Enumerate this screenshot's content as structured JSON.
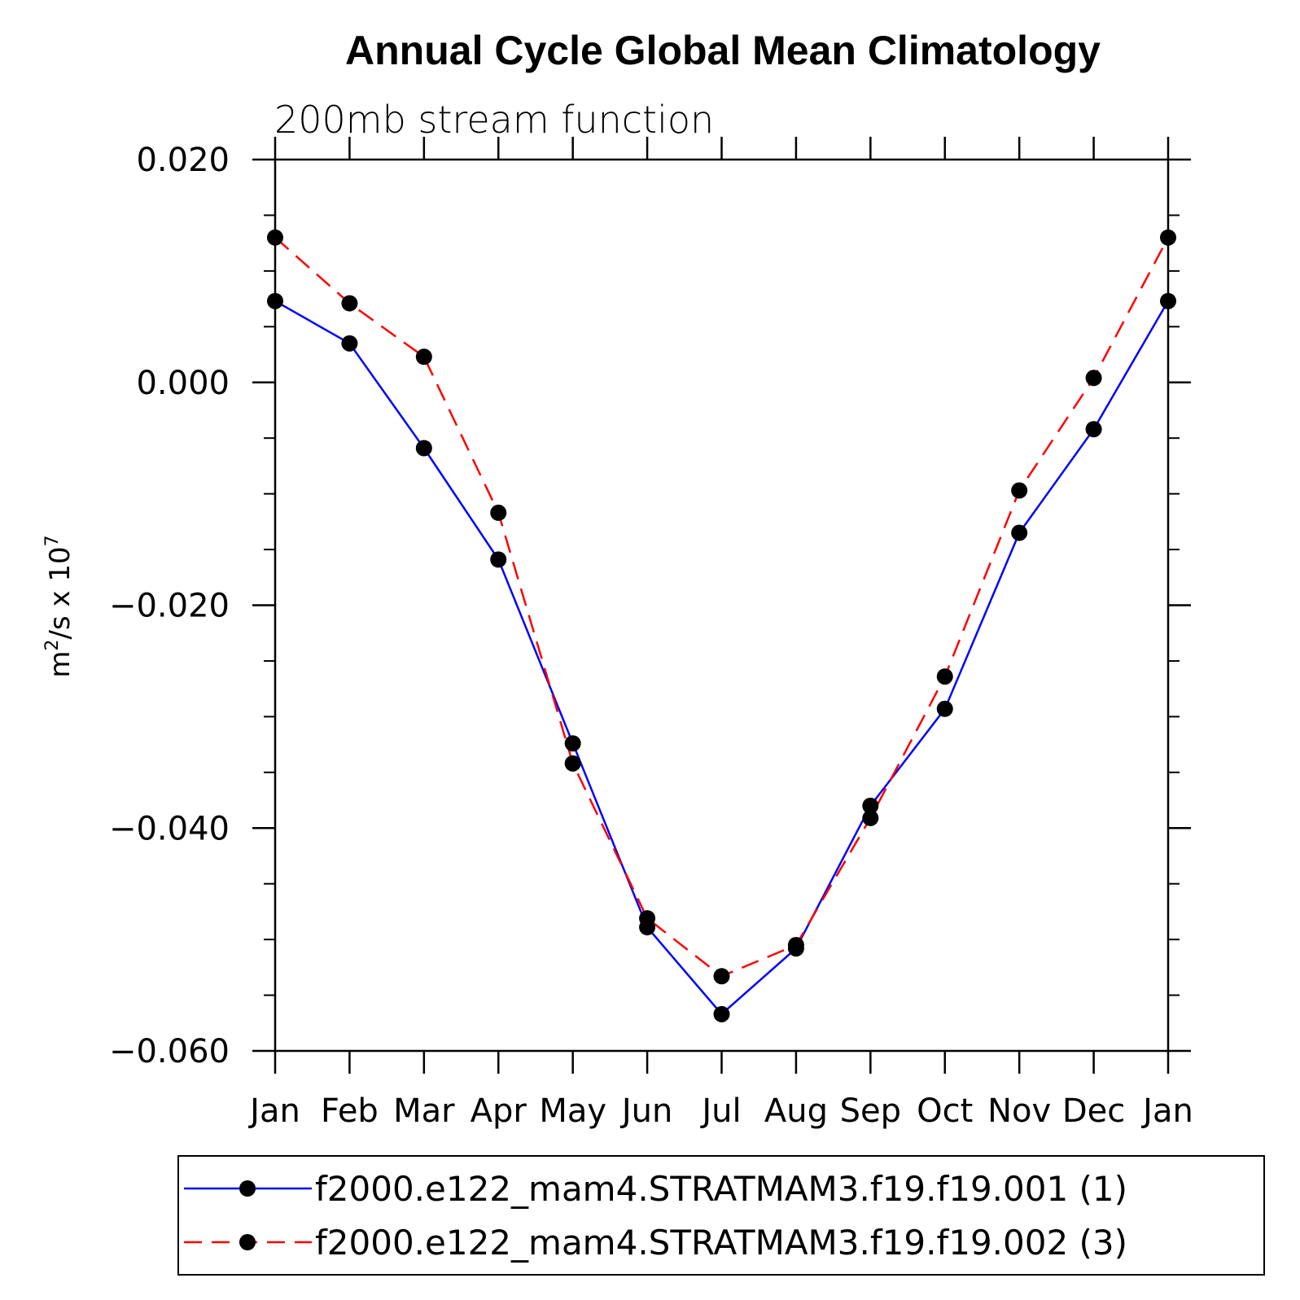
{
  "chart_data": {
    "type": "line",
    "title": "Annual Cycle Global Mean Climatology",
    "subtitle": "200mb stream function",
    "ylabel_base": "m",
    "ylabel_sup1": "2",
    "ylabel_mid": "/s x 10",
    "ylabel_sup2": "7",
    "categories": [
      "Jan",
      "Feb",
      "Mar",
      "Apr",
      "May",
      "Jun",
      "Jul",
      "Aug",
      "Sep",
      "Oct",
      "Nov",
      "Dec",
      "Jan"
    ],
    "ylim": [
      -0.06,
      0.02
    ],
    "yticks": [
      0.02,
      0.0,
      -0.02,
      -0.04,
      -0.06
    ],
    "ytick_labels": [
      "0.020",
      "0.000",
      "−0.020",
      "−0.040",
      "−0.060"
    ],
    "series": [
      {
        "name": "f2000.e122_mam4.STRATMAM3.f19.f19.001 (1)",
        "color": "#0000ff",
        "dash": "solid",
        "values": [
          0.0073,
          0.0035,
          -0.0059,
          -0.0159,
          -0.0324,
          -0.0489,
          -0.0567,
          -0.0508,
          -0.038,
          -0.0293,
          -0.0135,
          -0.0042,
          0.0073
        ]
      },
      {
        "name": "f2000.e122_mam4.STRATMAM3.f19.f19.002 (3)",
        "color": "#ff0000",
        "dash": "dashed",
        "values": [
          0.013,
          0.0071,
          0.0023,
          -0.0117,
          -0.0342,
          -0.0481,
          -0.0533,
          -0.0505,
          -0.0391,
          -0.0264,
          -0.0097,
          0.0004,
          0.013
        ]
      }
    ],
    "marker_color": "#000000",
    "legend_position": "bottom"
  }
}
